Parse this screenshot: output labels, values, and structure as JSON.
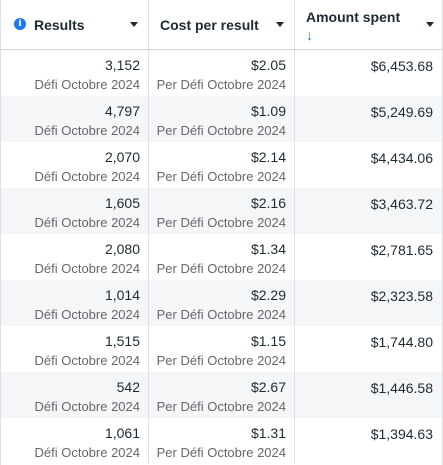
{
  "columns": [
    {
      "label": "Results"
    },
    {
      "label": "Cost per result"
    },
    {
      "label": "Amount spent"
    }
  ],
  "rows": [
    {
      "results": "3,152",
      "results_sub": "Défi Octobre 2024",
      "cpr": "$2.05",
      "cpr_sub": "Per Défi Octobre 2024",
      "spent": "$6,453.68"
    },
    {
      "results": "4,797",
      "results_sub": "Défi Octobre 2024",
      "cpr": "$1.09",
      "cpr_sub": "Per Défi Octobre 2024",
      "spent": "$5,249.69"
    },
    {
      "results": "2,070",
      "results_sub": "Défi Octobre 2024",
      "cpr": "$2.14",
      "cpr_sub": "Per Défi Octobre 2024",
      "spent": "$4,434.06"
    },
    {
      "results": "1,605",
      "results_sub": "Défi Octobre 2024",
      "cpr": "$2.16",
      "cpr_sub": "Per Défi Octobre 2024",
      "spent": "$3,463.72"
    },
    {
      "results": "2,080",
      "results_sub": "Défi Octobre 2024",
      "cpr": "$1.34",
      "cpr_sub": "Per Défi Octobre 2024",
      "spent": "$2,781.65"
    },
    {
      "results": "1,014",
      "results_sub": "Défi Octobre 2024",
      "cpr": "$2.29",
      "cpr_sub": "Per Défi Octobre 2024",
      "spent": "$2,323.58"
    },
    {
      "results": "1,515",
      "results_sub": "Défi Octobre 2024",
      "cpr": "$1.15",
      "cpr_sub": "Per Défi Octobre 2024",
      "spent": "$1,744.80"
    },
    {
      "results": "542",
      "results_sub": "Défi Octobre 2024",
      "cpr": "$2.67",
      "cpr_sub": "Per Défi Octobre 2024",
      "spent": "$1,446.58"
    },
    {
      "results": "1,061",
      "results_sub": "Défi Octobre 2024",
      "cpr": "$1.31",
      "cpr_sub": "Per Défi Octobre 2024",
      "spent": "$1,394.63"
    }
  ],
  "icons": {
    "info": "info-icon",
    "sort": "sort-descending-icon",
    "dropdown": "chevron-down-icon"
  },
  "colors": {
    "accent": "#1877f2",
    "row_alt": "#f5f6f7",
    "text": "#1c2b33",
    "subtext": "#65676b"
  }
}
